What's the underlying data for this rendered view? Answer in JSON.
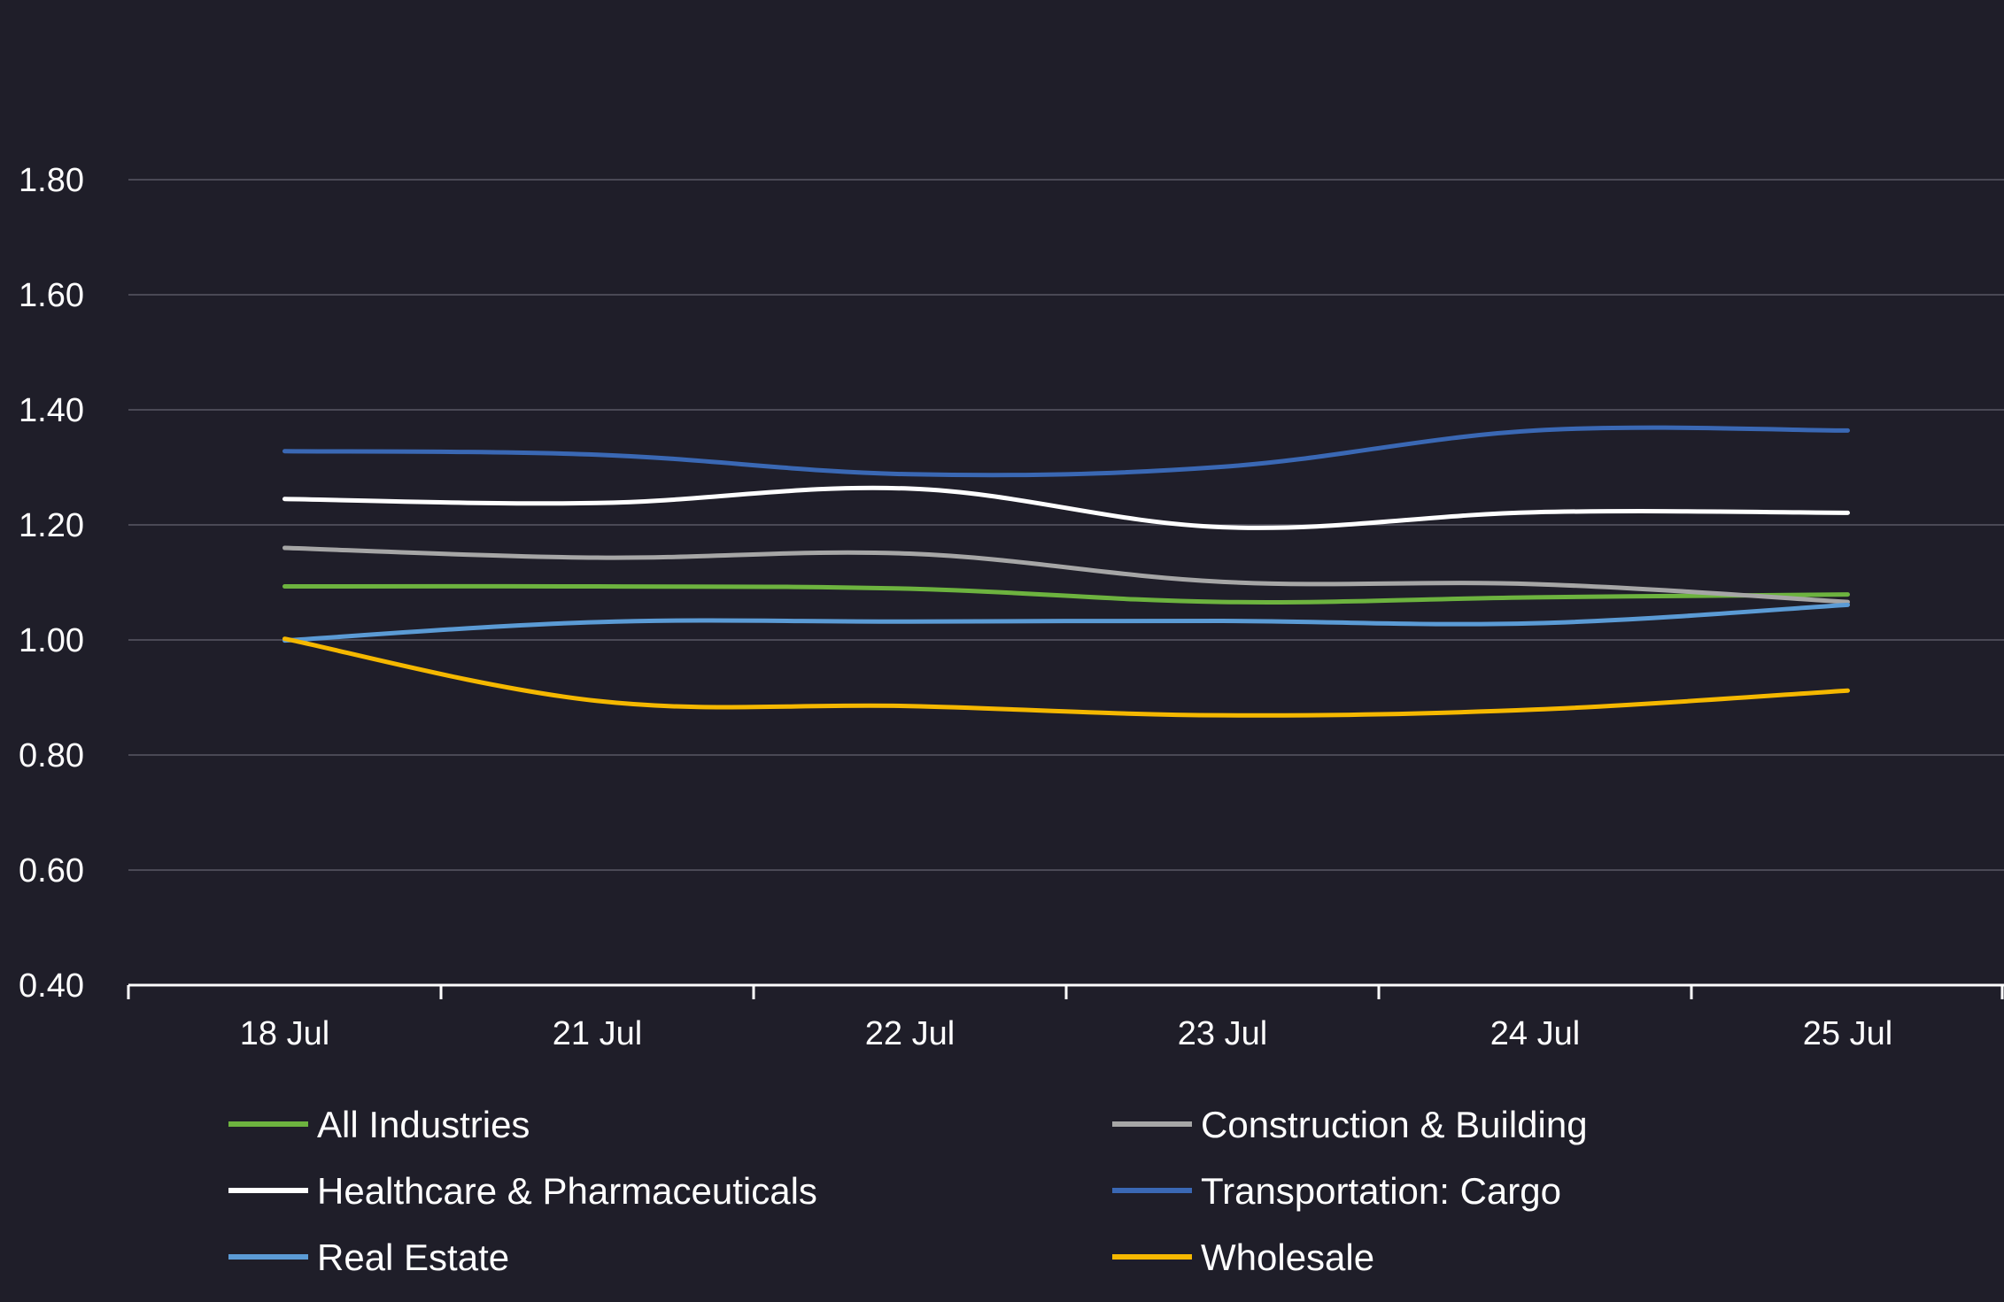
{
  "chart_data": {
    "type": "line",
    "title": "",
    "xlabel": "",
    "ylabel": "",
    "categories": [
      "18 Jul",
      "21 Jul",
      "22 Jul",
      "23 Jul",
      "24 Jul",
      "25 Jul"
    ],
    "yticks": [
      "0.40",
      "0.60",
      "0.80",
      "1.00",
      "1.20",
      "1.40",
      "1.60",
      "1.80"
    ],
    "ylim": [
      0.4,
      1.8
    ],
    "grid": true,
    "legend_position": "bottom",
    "series": [
      {
        "name": "All Industries",
        "color": "#6db33f",
        "values": [
          1.093,
          1.093,
          1.089,
          1.066,
          1.074,
          1.079
        ]
      },
      {
        "name": "Construction & Building",
        "color": "#a6a6a6",
        "values": [
          1.16,
          1.143,
          1.15,
          1.101,
          1.097,
          1.066
        ]
      },
      {
        "name": "Healthcare & Pharmaceuticals",
        "color": "#ffffff",
        "values": [
          1.245,
          1.238,
          1.263,
          1.196,
          1.222,
          1.221
        ]
      },
      {
        "name": "Transportation: Cargo",
        "color": "#3a68b4",
        "values": [
          1.328,
          1.322,
          1.288,
          1.301,
          1.364,
          1.364
        ]
      },
      {
        "name": "Real Estate",
        "color": "#5b9bd5",
        "values": [
          0.999,
          1.031,
          1.032,
          1.033,
          1.029,
          1.061
        ]
      },
      {
        "name": "Wholesale",
        "color": "#f5b800",
        "values": [
          1.002,
          0.894,
          0.885,
          0.869,
          0.879,
          0.912
        ]
      }
    ]
  }
}
